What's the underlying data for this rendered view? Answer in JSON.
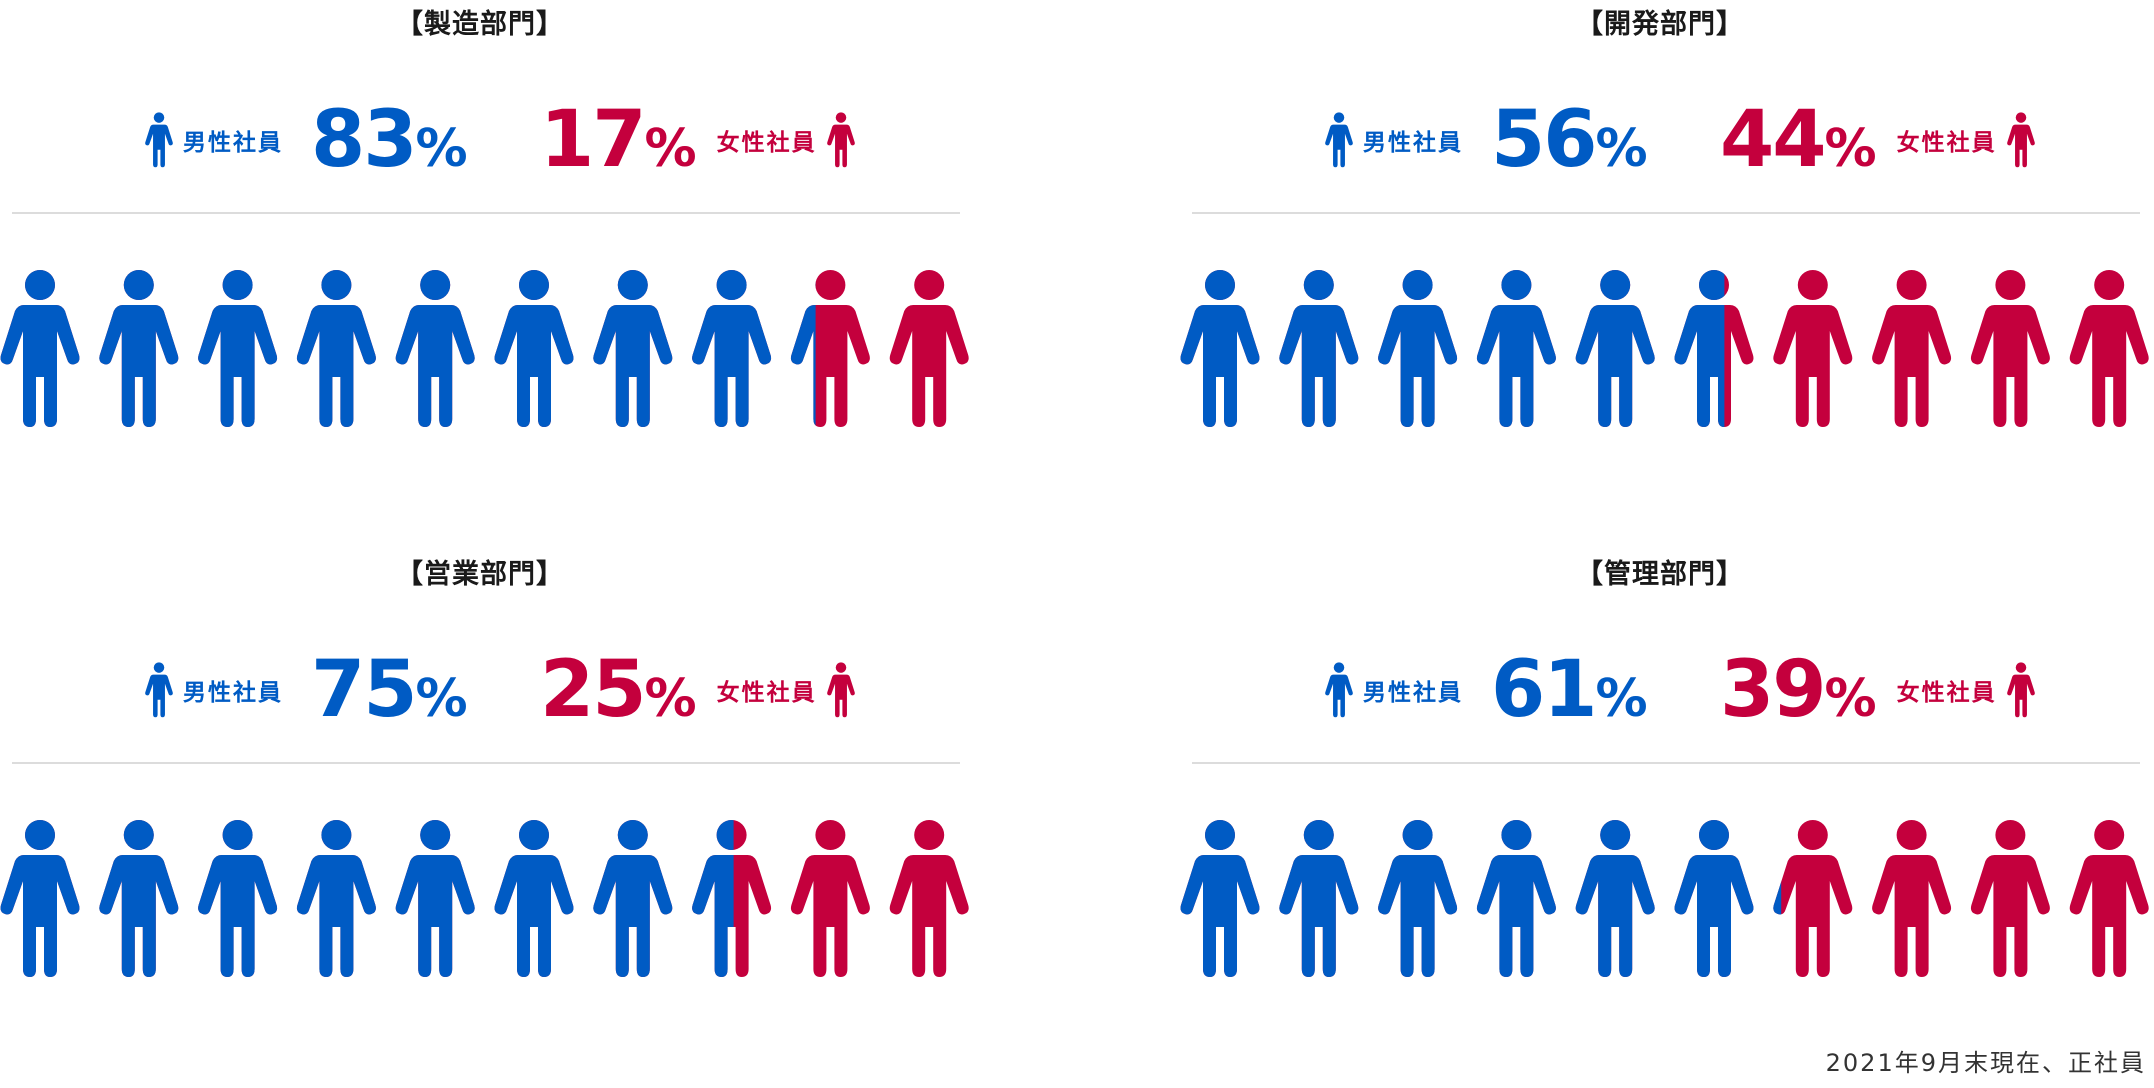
{
  "colors": {
    "male": "#005bc4",
    "female": "#c4003d"
  },
  "labels": {
    "male": "男性社員",
    "female": "女性社員",
    "percent_sign": "%"
  },
  "footnote": "2021年9月末現在、正社員",
  "chart_data": [
    {
      "type": "pictograph",
      "title": "【製造部門】",
      "units": 10,
      "series": [
        {
          "name": "男性社員",
          "values": [
            83
          ]
        },
        {
          "name": "女性社員",
          "values": [
            17
          ]
        }
      ]
    },
    {
      "type": "pictograph",
      "title": "【開発部門】",
      "units": 10,
      "series": [
        {
          "name": "男性社員",
          "values": [
            56
          ]
        },
        {
          "name": "女性社員",
          "values": [
            44
          ]
        }
      ]
    },
    {
      "type": "pictograph",
      "title": "【営業部門】",
      "units": 10,
      "series": [
        {
          "name": "男性社員",
          "values": [
            75
          ]
        },
        {
          "name": "女性社員",
          "values": [
            25
          ]
        }
      ]
    },
    {
      "type": "pictograph",
      "title": "【管理部門】",
      "units": 10,
      "series": [
        {
          "name": "男性社員",
          "values": [
            61
          ]
        },
        {
          "name": "女性社員",
          "values": [
            39
          ]
        }
      ]
    }
  ]
}
